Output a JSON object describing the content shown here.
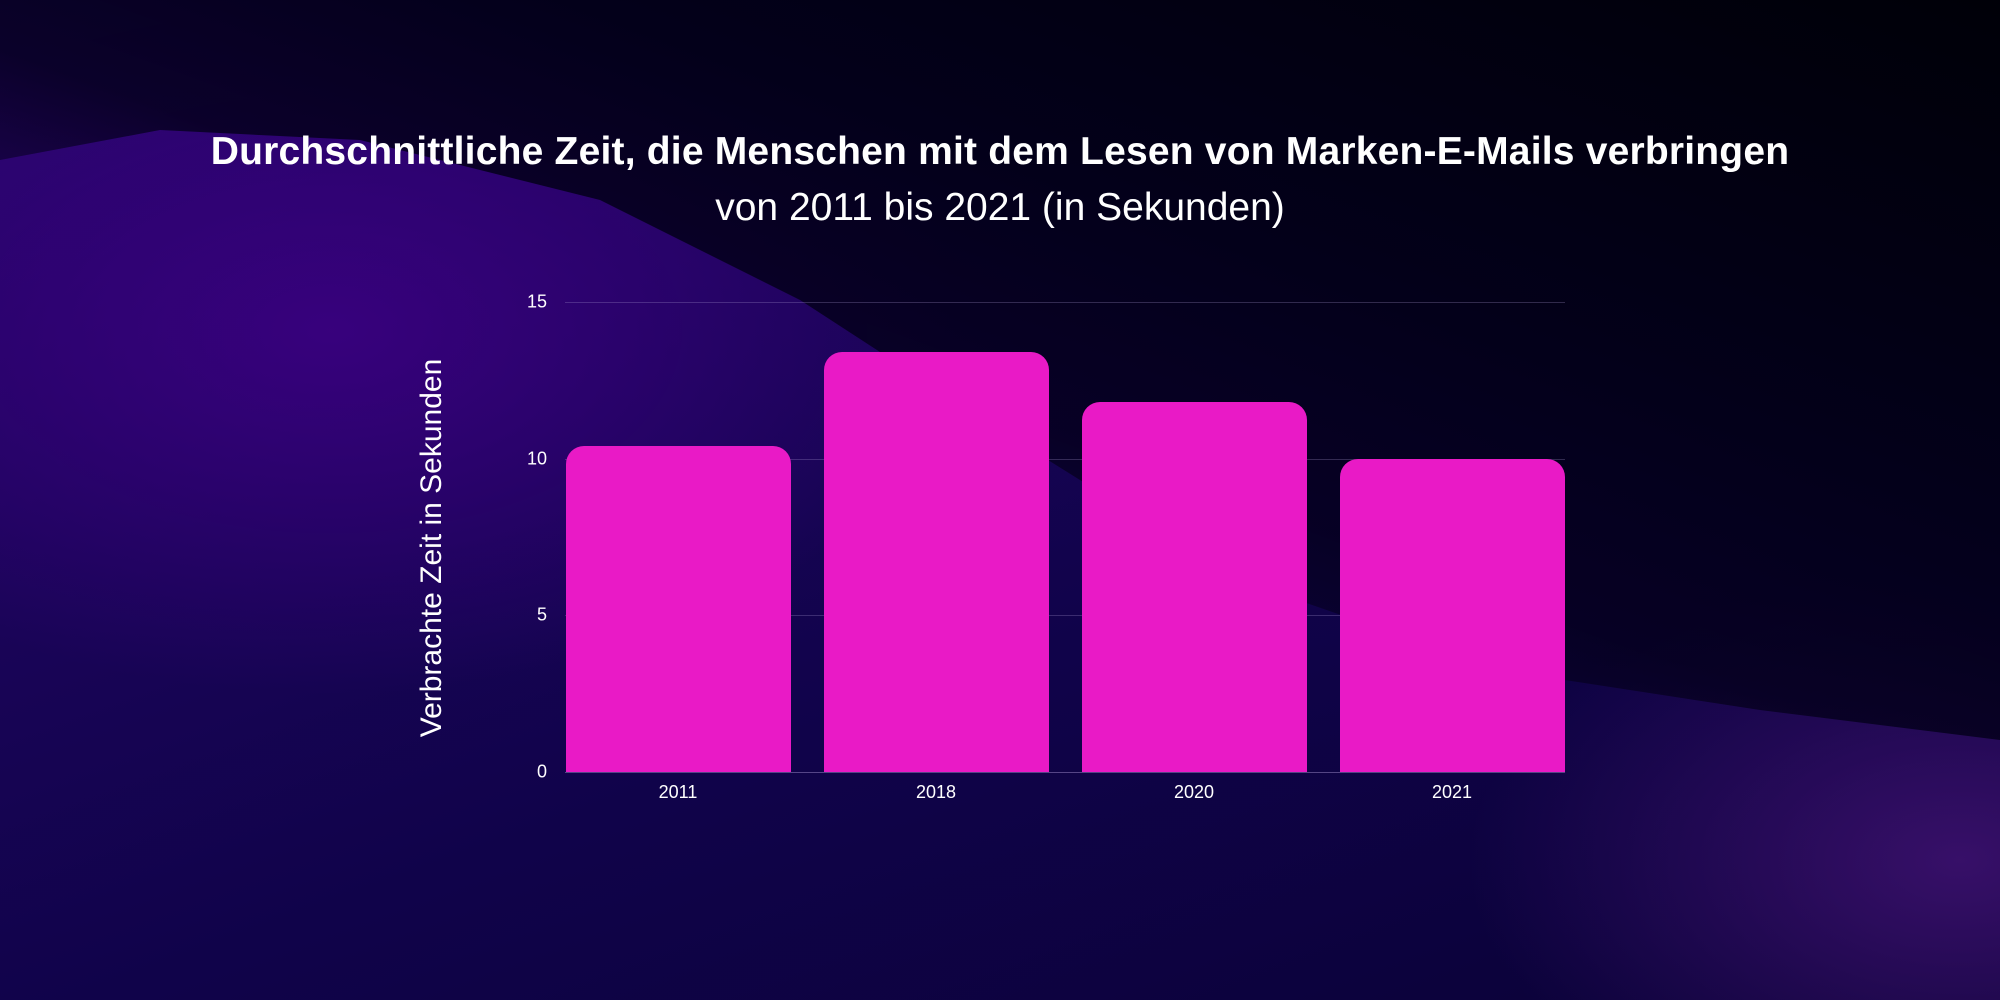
{
  "header": {
    "title": "Durchschnittliche Zeit, die Menschen mit dem Lesen von Marken-E-Mails verbringen",
    "subtitle": "von 2011 bis 2021 (in Sekunden)"
  },
  "colors": {
    "bar": "#e91ac6",
    "text": "#ffffff",
    "background_dark": "#03001a",
    "background_purple": "#2a0570"
  },
  "chart_data": {
    "type": "bar",
    "title": "Durchschnittliche Zeit, die Menschen mit dem Lesen von Marken-E-Mails verbringen",
    "subtitle": "von 2011 bis 2021 (in Sekunden)",
    "categories": [
      "2011",
      "2018",
      "2020",
      "2021"
    ],
    "values": [
      10.4,
      13.4,
      11.8,
      10.0
    ],
    "xlabel": "",
    "ylabel": "Verbrachte Zeit in Sekunden",
    "ylim": [
      0,
      15
    ],
    "yticks": [
      "0",
      "5",
      "10",
      "15"
    ],
    "grid": true,
    "legend": null,
    "bar_color": "#e91ac6"
  }
}
